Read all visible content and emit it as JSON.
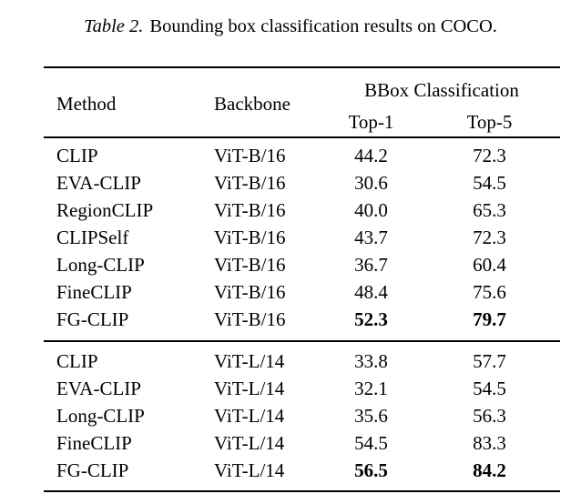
{
  "caption": {
    "label": "Table 2.",
    "text": "Bounding box classification results on COCO."
  },
  "table": {
    "headers": {
      "method": "Method",
      "backbone": "Backbone",
      "group": "BBox Classification",
      "top1": "Top-1",
      "top5": "Top-5"
    },
    "groups": [
      {
        "rows": [
          {
            "method": "CLIP",
            "backbone": "ViT-B/16",
            "top1": "44.2",
            "top5": "72.3"
          },
          {
            "method": "EVA-CLIP",
            "backbone": "ViT-B/16",
            "top1": "30.6",
            "top5": "54.5"
          },
          {
            "method": "RegionCLIP",
            "backbone": "ViT-B/16",
            "top1": "40.0",
            "top5": "65.3"
          },
          {
            "method": "CLIPSelf",
            "backbone": "ViT-B/16",
            "top1": "43.7",
            "top5": "72.3"
          },
          {
            "method": "Long-CLIP",
            "backbone": "ViT-B/16",
            "top1": "36.7",
            "top5": "60.4"
          },
          {
            "method": "FineCLIP",
            "backbone": "ViT-B/16",
            "top1": "48.4",
            "top5": "75.6"
          },
          {
            "method": "FG-CLIP",
            "backbone": "ViT-B/16",
            "top1": "52.3",
            "top5": "79.7"
          }
        ]
      },
      {
        "rows": [
          {
            "method": "CLIP",
            "backbone": "ViT-L/14",
            "top1": "33.8",
            "top5": "57.7"
          },
          {
            "method": "EVA-CLIP",
            "backbone": "ViT-L/14",
            "top1": "32.1",
            "top5": "54.5"
          },
          {
            "method": "Long-CLIP",
            "backbone": "ViT-L/14",
            "top1": "35.6",
            "top5": "56.3"
          },
          {
            "method": "FineCLIP",
            "backbone": "ViT-L/14",
            "top1": "54.5",
            "top5": "83.3"
          },
          {
            "method": "FG-CLIP",
            "backbone": "ViT-L/14",
            "top1": "56.5",
            "top5": "84.2"
          }
        ]
      }
    ]
  }
}
